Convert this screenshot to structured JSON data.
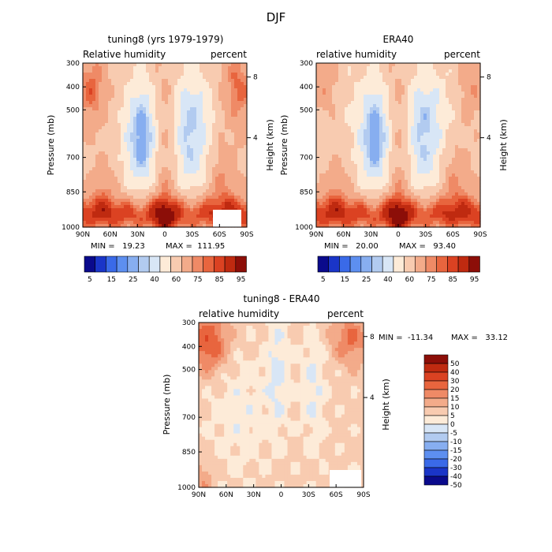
{
  "page_title": "DJF",
  "colors": {
    "levels": [
      "#0a0a8c",
      "#1a35c8",
      "#3a6ae8",
      "#5d8ff0",
      "#87aef0",
      "#b2cbf0",
      "#d8e6f6",
      "#fdebd8",
      "#f8cbb0",
      "#f3ab8a",
      "#ef8a66",
      "#e8653e",
      "#db4222",
      "#bf2a10",
      "#8c0e08"
    ]
  },
  "chart_data": [
    {
      "type": "heatmap",
      "title": "tuning8 (yrs 1979-1979)",
      "left_label": "Relative humidity",
      "right_label": "percent",
      "ylabel": "Pressure (mb)",
      "ylabel_right": "Height (km)",
      "xticks": [
        "90N",
        "60N",
        "30N",
        "0",
        "30S",
        "60S",
        "90S"
      ],
      "yticks": [
        "300",
        "400",
        "500",
        "700",
        "850",
        "1000"
      ],
      "height_ticks": [
        "8",
        "4"
      ],
      "min_label": "MIN =   19.23",
      "max_label": "MAX =  111.95",
      "colorbar": [
        "5",
        "15",
        "25",
        "40",
        "60",
        "75",
        "85",
        "95"
      ]
    },
    {
      "type": "heatmap",
      "title": "ERA40",
      "left_label": "relative humidity",
      "right_label": "percent",
      "ylabel": "Pressure (mb)",
      "ylabel_right": "Height (km)",
      "xticks": [
        "90N",
        "60N",
        "30N",
        "0",
        "30S",
        "60S",
        "90S"
      ],
      "yticks": [
        "300",
        "400",
        "500",
        "700",
        "850",
        "1000"
      ],
      "height_ticks": [
        "8",
        "4"
      ],
      "min_label": "MIN =   20.00",
      "max_label": "MAX =   93.40",
      "colorbar": [
        "5",
        "15",
        "25",
        "40",
        "60",
        "75",
        "85",
        "95"
      ]
    },
    {
      "type": "heatmap",
      "title": "tuning8 - ERA40",
      "left_label": "relative humidity",
      "right_label": "percent",
      "ylabel": "Pressure (mb)",
      "ylabel_right": "Height (km)",
      "xticks": [
        "90N",
        "60N",
        "30N",
        "0",
        "30S",
        "60S",
        "90S"
      ],
      "yticks": [
        "300",
        "400",
        "500",
        "700",
        "850",
        "1000"
      ],
      "height_ticks": [
        "8",
        "4"
      ],
      "min_label": "MIN =  -11.34",
      "max_label": "MAX =   33.12",
      "colorbar": [
        "50",
        "40",
        "30",
        "20",
        "15",
        "10",
        "5",
        "0",
        "-5",
        "-10",
        "-15",
        "-20",
        "-30",
        "-40",
        "-50"
      ]
    }
  ]
}
